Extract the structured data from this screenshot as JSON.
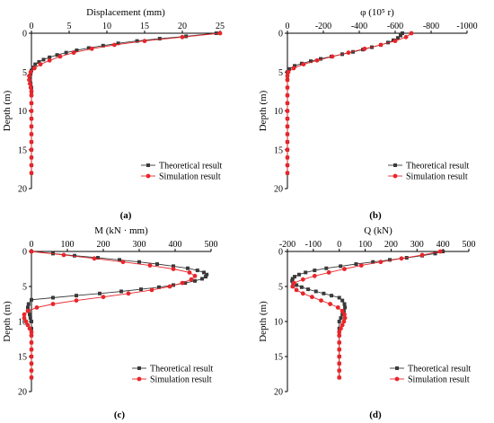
{
  "figure": {
    "legend_theoretical": "Theoretical result",
    "legend_simulation": "Simulation result",
    "colors": {
      "theoretical": "#3a3a3a",
      "simulation": "#e8262b",
      "axis": "#000000"
    }
  },
  "chart_data": [
    {
      "id": "a",
      "type": "line",
      "panel_label": "(a)",
      "title": "Displacement (mm)",
      "ylabel": "Depth (m)",
      "xlim": [
        0,
        25
      ],
      "ylim": [
        0,
        20
      ],
      "x_axis": "top",
      "y_inverted": true,
      "xticks": [
        0,
        5,
        10,
        15,
        20,
        25
      ],
      "yticks": [
        0,
        5,
        10,
        15,
        20
      ],
      "legend_position": "lower-right",
      "series": [
        {
          "name": "Theoretical result",
          "marker": "square",
          "points": [
            [
              24.5,
              0
            ],
            [
              20.5,
              0.4
            ],
            [
              17,
              0.7
            ],
            [
              14,
              1
            ],
            [
              11.5,
              1.3
            ],
            [
              9.5,
              1.6
            ],
            [
              7.6,
              1.9
            ],
            [
              6,
              2.2
            ],
            [
              4.6,
              2.5
            ],
            [
              3.4,
              2.8
            ],
            [
              2.4,
              3.1
            ],
            [
              1.6,
              3.4
            ],
            [
              1,
              3.7
            ],
            [
              0.5,
              4
            ],
            [
              0.2,
              4.4
            ],
            [
              0,
              4.8
            ],
            [
              -0.1,
              5.2
            ],
            [
              -0.2,
              5.6
            ],
            [
              -0.2,
              6
            ],
            [
              -0.1,
              6.5
            ],
            [
              0,
              7
            ],
            [
              0,
              7.5
            ],
            [
              0,
              8
            ],
            [
              0,
              9
            ],
            [
              0,
              10
            ],
            [
              0,
              11
            ],
            [
              0,
              12
            ],
            [
              0,
              13
            ],
            [
              0,
              14
            ],
            [
              0,
              15
            ],
            [
              0,
              16
            ],
            [
              0,
              17
            ],
            [
              0,
              18
            ]
          ]
        },
        {
          "name": "Simulation result",
          "marker": "circle",
          "points": [
            [
              25,
              0
            ],
            [
              20,
              0.5
            ],
            [
              15,
              1
            ],
            [
              11,
              1.5
            ],
            [
              8,
              2
            ],
            [
              5.6,
              2.5
            ],
            [
              3.8,
              3
            ],
            [
              2.4,
              3.5
            ],
            [
              1.2,
              4
            ],
            [
              0.4,
              4.5
            ],
            [
              -0.1,
              5
            ],
            [
              -0.3,
              5.5
            ],
            [
              -0.3,
              6
            ],
            [
              -0.2,
              6.5
            ],
            [
              -0.1,
              7
            ],
            [
              0,
              7.5
            ],
            [
              0,
              8
            ],
            [
              0,
              9
            ],
            [
              0,
              10
            ],
            [
              0,
              11
            ],
            [
              0,
              12
            ],
            [
              0,
              13
            ],
            [
              0,
              14
            ],
            [
              0,
              15
            ],
            [
              0,
              16
            ],
            [
              0,
              17
            ],
            [
              0,
              18
            ]
          ]
        }
      ]
    },
    {
      "id": "b",
      "type": "line",
      "panel_label": "(b)",
      "title": "φ (10⁵ r)",
      "ylabel": "Depth (m)",
      "xlim": [
        0,
        -1000
      ],
      "ylim": [
        0,
        20
      ],
      "x_axis": "top",
      "y_inverted": true,
      "xticks": [
        0,
        -200,
        -400,
        -600,
        -800,
        -1000
      ],
      "yticks": [
        0,
        5,
        10,
        15,
        20
      ],
      "legend_position": "lower-right",
      "series": [
        {
          "name": "Theoretical result",
          "marker": "square",
          "points": [
            [
              -640,
              0
            ],
            [
              -630,
              0.3
            ],
            [
              -615,
              0.6
            ],
            [
              -590,
              0.9
            ],
            [
              -560,
              1.2
            ],
            [
              -520,
              1.5
            ],
            [
              -470,
              1.8
            ],
            [
              -420,
              2.1
            ],
            [
              -365,
              2.4
            ],
            [
              -305,
              2.7
            ],
            [
              -245,
              3
            ],
            [
              -185,
              3.3
            ],
            [
              -130,
              3.6
            ],
            [
              -80,
              3.9
            ],
            [
              -40,
              4.2
            ],
            [
              -10,
              4.6
            ],
            [
              0,
              5
            ],
            [
              0,
              5.5
            ],
            [
              0,
              6
            ],
            [
              0,
              7
            ],
            [
              0,
              8
            ],
            [
              0,
              9
            ],
            [
              0,
              10
            ],
            [
              0,
              11
            ],
            [
              0,
              12
            ],
            [
              0,
              13
            ],
            [
              0,
              14
            ],
            [
              0,
              15
            ],
            [
              0,
              16
            ],
            [
              0,
              17
            ],
            [
              0,
              18
            ]
          ]
        },
        {
          "name": "Simulation result",
          "marker": "circle",
          "points": [
            [
              -690,
              0
            ],
            [
              -660,
              0.5
            ],
            [
              -600,
              1
            ],
            [
              -520,
              1.5
            ],
            [
              -430,
              2
            ],
            [
              -340,
              2.5
            ],
            [
              -250,
              3
            ],
            [
              -165,
              3.5
            ],
            [
              -90,
              4
            ],
            [
              -35,
              4.5
            ],
            [
              -5,
              5
            ],
            [
              0,
              5.5
            ],
            [
              0,
              6
            ],
            [
              0,
              7
            ],
            [
              0,
              8
            ],
            [
              0,
              9
            ],
            [
              0,
              10
            ],
            [
              0,
              11
            ],
            [
              0,
              12
            ],
            [
              0,
              13
            ],
            [
              0,
              14
            ],
            [
              0,
              15
            ],
            [
              0,
              16
            ],
            [
              0,
              17
            ],
            [
              0,
              18
            ]
          ]
        }
      ]
    },
    {
      "id": "c",
      "type": "line",
      "panel_label": "(c)",
      "title": "M (kN · mm)",
      "ylabel": "Depth (m)",
      "xlim": [
        0,
        500
      ],
      "ylim": [
        0,
        20
      ],
      "x_axis": "top",
      "y_inverted": true,
      "xticks": [
        0,
        100,
        200,
        300,
        400,
        500
      ],
      "yticks": [
        0,
        5,
        10,
        15,
        20
      ],
      "legend_position": "lower-right",
      "series": [
        {
          "name": "Theoretical result",
          "marker": "square",
          "points": [
            [
              0,
              0
            ],
            [
              60,
              0.3
            ],
            [
              120,
              0.6
            ],
            [
              185,
              0.9
            ],
            [
              245,
              1.2
            ],
            [
              300,
              1.5
            ],
            [
              350,
              1.8
            ],
            [
              395,
              2.1
            ],
            [
              435,
              2.4
            ],
            [
              462,
              2.7
            ],
            [
              480,
              3
            ],
            [
              488,
              3.3
            ],
            [
              485,
              3.6
            ],
            [
              475,
              3.9
            ],
            [
              455,
              4.2
            ],
            [
              428,
              4.5
            ],
            [
              395,
              4.8
            ],
            [
              355,
              5.1
            ],
            [
              305,
              5.4
            ],
            [
              250,
              5.7
            ],
            [
              190,
              6
            ],
            [
              125,
              6.3
            ],
            [
              60,
              6.6
            ],
            [
              0,
              6.9
            ],
            [
              -8,
              7.5
            ],
            [
              -10,
              8
            ],
            [
              -8,
              8.5
            ],
            [
              -5,
              9
            ],
            [
              -3,
              9.5
            ],
            [
              0,
              10
            ],
            [
              0,
              11
            ],
            [
              0,
              12
            ],
            [
              0,
              13
            ],
            [
              0,
              14
            ],
            [
              0,
              15
            ],
            [
              0,
              16
            ],
            [
              0,
              17
            ],
            [
              0,
              18
            ]
          ]
        },
        {
          "name": "Simulation result",
          "marker": "circle",
          "points": [
            [
              0,
              0
            ],
            [
              90,
              0.5
            ],
            [
              175,
              1
            ],
            [
              255,
              1.5
            ],
            [
              330,
              2
            ],
            [
              395,
              2.5
            ],
            [
              440,
              3
            ],
            [
              455,
              3.5
            ],
            [
              445,
              4
            ],
            [
              420,
              4.5
            ],
            [
              385,
              5
            ],
            [
              335,
              5.5
            ],
            [
              270,
              6
            ],
            [
              200,
              6.5
            ],
            [
              125,
              7
            ],
            [
              60,
              7.5
            ],
            [
              15,
              8
            ],
            [
              -10,
              8.5
            ],
            [
              -20,
              9
            ],
            [
              -20,
              9.5
            ],
            [
              -15,
              10
            ],
            [
              -10,
              10.5
            ],
            [
              -5,
              11
            ],
            [
              0,
              11.5
            ],
            [
              0,
              12
            ],
            [
              0,
              13
            ],
            [
              0,
              14
            ],
            [
              0,
              15
            ],
            [
              0,
              16
            ],
            [
              0,
              17
            ],
            [
              0,
              18
            ]
          ]
        }
      ]
    },
    {
      "id": "d",
      "type": "line",
      "panel_label": "(d)",
      "title": "Q (kN)",
      "ylabel": "Depth (m)",
      "xlim": [
        -200,
        500
      ],
      "ylim": [
        0,
        20
      ],
      "x_axis": "top",
      "y_inverted": true,
      "xticks": [
        -200,
        -100,
        0,
        100,
        200,
        300,
        400,
        500
      ],
      "yticks": [
        0,
        5,
        10,
        15,
        20
      ],
      "legend_position": "lower-right",
      "series": [
        {
          "name": "Theoretical result",
          "marker": "square",
          "points": [
            [
              400,
              0
            ],
            [
              370,
              0.3
            ],
            [
              320,
              0.6
            ],
            [
              260,
              0.9
            ],
            [
              195,
              1.2
            ],
            [
              130,
              1.5
            ],
            [
              65,
              1.8
            ],
            [
              5,
              2.1
            ],
            [
              -50,
              2.4
            ],
            [
              -95,
              2.7
            ],
            [
              -130,
              3
            ],
            [
              -155,
              3.3
            ],
            [
              -172,
              3.6
            ],
            [
              -180,
              3.9
            ],
            [
              -182,
              4.2
            ],
            [
              -178,
              4.5
            ],
            [
              -165,
              4.8
            ],
            [
              -145,
              5.1
            ],
            [
              -120,
              5.4
            ],
            [
              -90,
              5.7
            ],
            [
              -60,
              6
            ],
            [
              -30,
              6.3
            ],
            [
              0,
              6.6
            ],
            [
              12,
              7
            ],
            [
              20,
              7.5
            ],
            [
              22,
              8
            ],
            [
              18,
              8.5
            ],
            [
              12,
              9
            ],
            [
              6,
              9.5
            ],
            [
              0,
              10
            ],
            [
              0,
              11
            ],
            [
              0,
              12
            ],
            [
              0,
              13
            ],
            [
              0,
              14
            ],
            [
              0,
              15
            ],
            [
              0,
              16
            ],
            [
              0,
              17
            ],
            [
              0,
              18
            ]
          ]
        },
        {
          "name": "Simulation result",
          "marker": "circle",
          "points": [
            [
              390,
              0
            ],
            [
              320,
              0.5
            ],
            [
              240,
              1
            ],
            [
              160,
              1.5
            ],
            [
              85,
              2
            ],
            [
              20,
              2.5
            ],
            [
              -40,
              3
            ],
            [
              -95,
              3.5
            ],
            [
              -140,
              4
            ],
            [
              -175,
              4.5
            ],
            [
              -180,
              5
            ],
            [
              -165,
              5.5
            ],
            [
              -140,
              6
            ],
            [
              -105,
              6.5
            ],
            [
              -70,
              7
            ],
            [
              -35,
              7.5
            ],
            [
              -5,
              8
            ],
            [
              12,
              8.5
            ],
            [
              20,
              9
            ],
            [
              22,
              9.5
            ],
            [
              18,
              10
            ],
            [
              12,
              10.5
            ],
            [
              6,
              11
            ],
            [
              0,
              11.5
            ],
            [
              0,
              12
            ],
            [
              0,
              13
            ],
            [
              0,
              14
            ],
            [
              0,
              15
            ],
            [
              0,
              16
            ],
            [
              0,
              17
            ],
            [
              0,
              18
            ]
          ]
        }
      ]
    }
  ]
}
